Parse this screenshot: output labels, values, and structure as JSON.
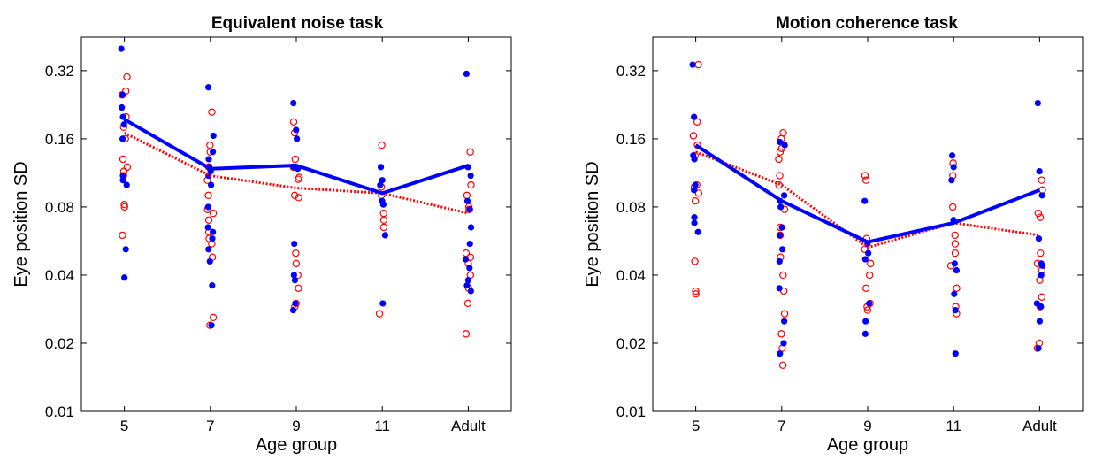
{
  "chart_data": [
    {
      "type": "scatter",
      "title": "Equivalent noise task",
      "xlabel": "Age group",
      "ylabel": "Eye position SD",
      "categories": [
        "5",
        "7",
        "9",
        "11",
        "Adult"
      ],
      "y_scale": "log2",
      "ylim": [
        0.01,
        0.45
      ],
      "yticks": [
        "0.01",
        "0.02",
        "0.04",
        "0.08",
        "0.16",
        "0.32"
      ],
      "ytick_values": [
        0.01,
        0.02,
        0.04,
        0.08,
        0.16,
        0.32
      ],
      "grid": false,
      "series": [
        {
          "color": "#0000ff",
          "marker": "filled-circle",
          "line_style": "solid",
          "line": [
            0.195,
            0.118,
            0.122,
            0.092,
            0.122
          ],
          "points": [
            [
              0.4,
              0.25,
              0.22,
              0.2,
              0.185,
              0.16,
              0.11,
              0.105,
              0.1,
              0.052,
              0.039
            ],
            [
              0.27,
              0.165,
              0.14,
              0.13,
              0.12,
              0.115,
              0.11,
              0.1,
              0.08,
              0.065,
              0.062,
              0.058,
              0.052,
              0.046,
              0.036,
              0.024
            ],
            [
              0.23,
              0.175,
              0.16,
              0.12,
              0.118,
              0.055,
              0.04,
              0.038,
              0.03,
              0.028
            ],
            [
              0.12,
              0.105,
              0.1,
              0.085,
              0.082,
              0.06,
              0.03
            ],
            [
              0.31,
              0.12,
              0.11,
              0.085,
              0.078,
              0.065,
              0.055,
              0.047,
              0.043,
              0.038,
              0.036,
              0.034
            ]
          ]
        },
        {
          "color": "#ff0000",
          "marker": "open-circle",
          "line_style": "dotted",
          "line": [
            0.17,
            0.11,
            0.097,
            0.092,
            0.075
          ],
          "points": [
            [
              0.3,
              0.26,
              0.25,
              0.2,
              0.18,
              0.16,
              0.13,
              0.12,
              0.115,
              0.11,
              0.082,
              0.08,
              0.06
            ],
            [
              0.21,
              0.15,
              0.14,
              0.12,
              0.105,
              0.09,
              0.078,
              0.075,
              0.07,
              0.062,
              0.058,
              0.055,
              0.048,
              0.026,
              0.024
            ],
            [
              0.19,
              0.17,
              0.13,
              0.12,
              0.108,
              0.106,
              0.09,
              0.088,
              0.05,
              0.045,
              0.04,
              0.035,
              0.03,
              0.029
            ],
            [
              0.15,
              0.098,
              0.09,
              0.075,
              0.07,
              0.065,
              0.027
            ],
            [
              0.14,
              0.1,
              0.09,
              0.08,
              0.078,
              0.05,
              0.048,
              0.045,
              0.04,
              0.035,
              0.03,
              0.022
            ]
          ]
        }
      ]
    },
    {
      "type": "scatter",
      "title": "Motion coherence task",
      "xlabel": "Age group",
      "ylabel": "Eye position SD",
      "categories": [
        "5",
        "7",
        "9",
        "11",
        "Adult"
      ],
      "y_scale": "log2",
      "ylim": [
        0.01,
        0.45
      ],
      "yticks": [
        "0.01",
        "0.02",
        "0.04",
        "0.08",
        "0.16",
        "0.32"
      ],
      "ytick_values": [
        0.01,
        0.02,
        0.04,
        0.08,
        0.16,
        0.32
      ],
      "grid": false,
      "series": [
        {
          "color": "#0000ff",
          "marker": "filled-circle",
          "line_style": "solid",
          "line": [
            0.15,
            0.085,
            0.056,
            0.068,
            0.095
          ],
          "points": [
            [
              0.34,
              0.2,
              0.135,
              0.13,
              0.1,
              0.095,
              0.072,
              0.068,
              0.062
            ],
            [
              0.155,
              0.15,
              0.09,
              0.085,
              0.08,
              0.065,
              0.06,
              0.052,
              0.046,
              0.035,
              0.025,
              0.02,
              0.018
            ],
            [
              0.085,
              0.055,
              0.05,
              0.047,
              0.03,
              0.025,
              0.022
            ],
            [
              0.135,
              0.12,
              0.105,
              0.07,
              0.045,
              0.042,
              0.033,
              0.028,
              0.018
            ],
            [
              0.23,
              0.115,
              0.09,
              0.058,
              0.045,
              0.044,
              0.04,
              0.03,
              0.029,
              0.025,
              0.019
            ]
          ]
        },
        {
          "color": "#ff0000",
          "marker": "open-circle",
          "line_style": "dotted",
          "line": [
            0.14,
            0.1,
            0.053,
            0.068,
            0.06
          ],
          "points": [
            [
              0.34,
              0.19,
              0.165,
              0.15,
              0.135,
              0.1,
              0.098,
              0.092,
              0.085,
              0.046,
              0.034,
              0.033
            ],
            [
              0.17,
              0.16,
              0.145,
              0.14,
              0.13,
              0.11,
              0.1,
              0.078,
              0.065,
              0.06,
              0.048,
              0.04,
              0.034,
              0.027,
              0.022,
              0.019,
              0.016
            ],
            [
              0.11,
              0.105,
              0.058,
              0.052,
              0.045,
              0.04,
              0.035,
              0.03,
              0.029,
              0.028
            ],
            [
              0.125,
              0.11,
              0.08,
              0.06,
              0.055,
              0.05,
              0.044,
              0.035,
              0.029,
              0.027
            ],
            [
              0.105,
              0.095,
              0.075,
              0.072,
              0.05,
              0.045,
              0.042,
              0.038,
              0.032,
              0.029,
              0.02,
              0.019
            ]
          ]
        }
      ]
    }
  ]
}
